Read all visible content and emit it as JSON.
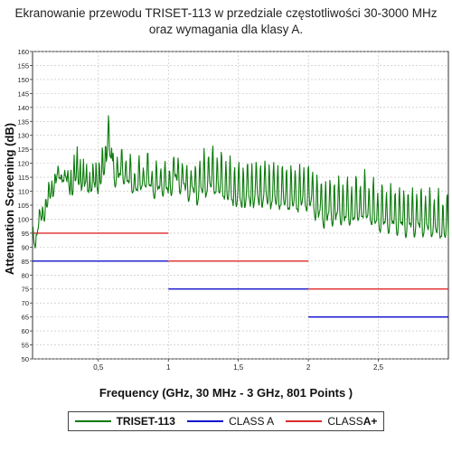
{
  "title_lines": [
    "Ekranowanie przewodu TRISET-113 w przedziale częstotliwości 30-3000 MHz",
    "oraz wymagania dla klasy A."
  ],
  "chart_data": {
    "type": "line",
    "xlabel": "Frequency (GHz, 30 MHz - 3 GHz, 801 Points )",
    "ylabel": "Attenuation Screening (dB)",
    "xlim": [
      0.03,
      3.0
    ],
    "ylim": [
      50,
      160
    ],
    "x_ticks": [
      {
        "value": 0.5,
        "label": "0,5"
      },
      {
        "value": 1.0,
        "label": "1"
      },
      {
        "value": 1.5,
        "label": "1,5"
      },
      {
        "value": 2.0,
        "label": "2"
      },
      {
        "value": 2.5,
        "label": "2,5"
      }
    ],
    "y_ticks": [
      50,
      55,
      60,
      65,
      70,
      75,
      80,
      85,
      90,
      95,
      100,
      105,
      110,
      115,
      120,
      125,
      130,
      135,
      140,
      145,
      150,
      155,
      160
    ],
    "grid": true,
    "legend_position": "bottom",
    "series": [
      {
        "name": "TRISET-113",
        "color": "#0b7a0b",
        "x": [
          0.03,
          0.05,
          0.08,
          0.12,
          0.16,
          0.2,
          0.25,
          0.3,
          0.35,
          0.4,
          0.45,
          0.5,
          0.55,
          0.57,
          0.6,
          0.65,
          0.7,
          0.75,
          0.8,
          0.85,
          0.9,
          0.95,
          1.0,
          1.05,
          1.1,
          1.15,
          1.2,
          1.3,
          1.4,
          1.5,
          1.6,
          1.7,
          1.8,
          1.9,
          2.0,
          2.1,
          2.2,
          2.3,
          2.4,
          2.5,
          2.6,
          2.7,
          2.8,
          2.9,
          3.0
        ],
        "y": [
          96,
          92,
          100,
          104,
          110,
          115,
          116,
          112,
          118,
          114,
          113,
          115,
          120,
          134,
          116,
          118,
          117,
          113,
          114,
          116,
          112,
          114,
          112,
          117,
          114,
          112,
          112,
          116,
          113,
          110,
          111,
          111,
          110,
          109,
          110,
          104,
          105,
          104,
          106,
          102,
          102,
          101,
          101,
          100,
          98
        ]
      },
      {
        "name": "CLASS A",
        "color": "#1010cc",
        "segments": [
          {
            "x": [
              0.03,
              1.0
            ],
            "y": 85
          },
          {
            "x": [
              1.0,
              2.0
            ],
            "y": 75
          },
          {
            "x": [
              2.0,
              3.0
            ],
            "y": 65
          }
        ]
      },
      {
        "name": "CLASS A+",
        "color": "#dd2a2a",
        "segments": [
          {
            "x": [
              0.03,
              1.0
            ],
            "y": 95
          },
          {
            "x": [
              1.0,
              2.0
            ],
            "y": 85
          },
          {
            "x": [
              2.0,
              3.0
            ],
            "y": 75
          }
        ]
      }
    ]
  },
  "legend": {
    "items": [
      {
        "label": "TRISET-113",
        "color": "#0b7a0b",
        "bold": true
      },
      {
        "label": "CLASS A",
        "color": "#1010cc",
        "bold": false
      },
      {
        "label": "CLASS ",
        "label_strong": "A+",
        "color": "#dd2a2a",
        "bold": false
      }
    ]
  }
}
